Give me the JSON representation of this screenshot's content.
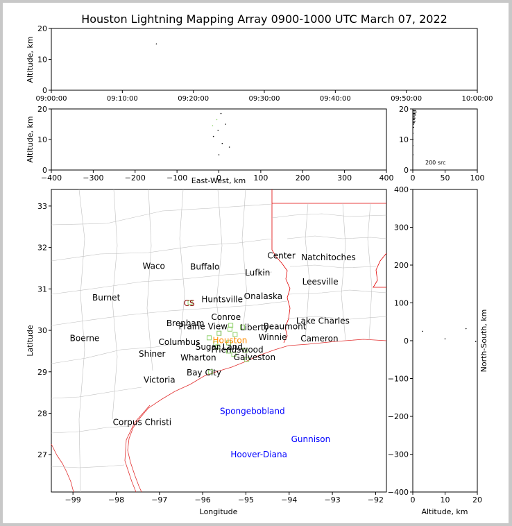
{
  "chart_data": [
    {
      "panel": "time-altitude",
      "type": "scatter",
      "title": "Houston Lightning Mapping Array 0900-1000 UTC March 07, 2022",
      "xlabel": "",
      "ylabel": "Altitude, km",
      "xticks": [
        "09:00:00",
        "09:10:00",
        "09:20:00",
        "09:30:00",
        "09:40:00",
        "09:50:00",
        "10:00:00"
      ],
      "xlim_minutes": [
        0,
        60
      ],
      "ylim": [
        0,
        20
      ],
      "yticks": [
        0,
        10,
        20
      ],
      "points": [
        {
          "t_min": 14.8,
          "alt": 15
        }
      ]
    },
    {
      "panel": "east-west-altitude",
      "type": "scatter",
      "xlabel": "East-West, km",
      "ylabel": "Altitude, km",
      "xlim": [
        -400,
        400
      ],
      "xticks": [
        -400,
        -300,
        -200,
        -100,
        0,
        100,
        200,
        300,
        400
      ],
      "ylim": [
        0,
        20
      ],
      "yticks": [
        0,
        10,
        20
      ],
      "points": [
        {
          "x": 5,
          "alt": 18.5,
          "color": "#000000"
        },
        {
          "x": -5,
          "alt": 16.5,
          "color": "#8fd16a"
        },
        {
          "x": 16,
          "alt": 15,
          "color": "#000000"
        },
        {
          "x": -15,
          "alt": 14.5,
          "color": "#8fd16a"
        },
        {
          "x": -2,
          "alt": 13,
          "color": "#000000"
        },
        {
          "x": -13,
          "alt": 11,
          "color": "#000000"
        },
        {
          "x": 8,
          "alt": 8.7,
          "color": "#000000"
        },
        {
          "x": 25,
          "alt": 7.5,
          "color": "#000000"
        },
        {
          "x": 0,
          "alt": 5,
          "color": "#000000"
        }
      ]
    },
    {
      "panel": "altitude-histogram",
      "type": "bar",
      "xlim": [
        0,
        100
      ],
      "xticks": [
        0,
        50,
        100
      ],
      "ylim": [
        0,
        20
      ],
      "yticks": [
        0,
        10,
        20
      ],
      "annotation": "200 src",
      "bins": [
        {
          "alt": 19.5,
          "count": 5
        },
        {
          "alt": 19,
          "count": 6
        },
        {
          "alt": 18.5,
          "count": 4
        },
        {
          "alt": 18,
          "count": 5
        },
        {
          "alt": 17.5,
          "count": 3
        },
        {
          "alt": 17,
          "count": 4
        },
        {
          "alt": 16.5,
          "count": 3
        },
        {
          "alt": 16,
          "count": 4
        },
        {
          "alt": 15.5,
          "count": 3
        },
        {
          "alt": 15,
          "count": 2
        },
        {
          "alt": 14,
          "count": 2
        },
        {
          "alt": 12,
          "count": 1
        },
        {
          "alt": 10,
          "count": 1
        },
        {
          "alt": 8,
          "count": 1
        },
        {
          "alt": 5,
          "count": 1
        }
      ]
    },
    {
      "panel": "plan-view-map",
      "type": "scatter",
      "xlabel": "Longitude",
      "ylabel": "Latitude",
      "xlim": [
        -99.5,
        -91.75
      ],
      "xticks": [
        -99,
        -98,
        -97,
        -96,
        -95,
        -94,
        -93,
        -92
      ],
      "ylim": [
        26.1,
        33.4
      ],
      "yticks": [
        27,
        28,
        29,
        30,
        31,
        32,
        33
      ],
      "places": [
        {
          "name": "Waco",
          "lon": -97.13,
          "lat": 31.55,
          "color": "#000000"
        },
        {
          "name": "Buffalo",
          "lon": -95.95,
          "lat": 31.53,
          "color": "#000000"
        },
        {
          "name": "Center",
          "lon": -94.18,
          "lat": 31.8,
          "color": "#000000"
        },
        {
          "name": "Natchitoches",
          "lon": -93.09,
          "lat": 31.76,
          "color": "#000000"
        },
        {
          "name": "Lufkin",
          "lon": -94.73,
          "lat": 31.39,
          "color": "#000000"
        },
        {
          "name": "Leesville",
          "lon": -93.28,
          "lat": 31.17,
          "color": "#000000"
        },
        {
          "name": "Burnet",
          "lon": -98.23,
          "lat": 30.79,
          "color": "#000000"
        },
        {
          "name": "CS",
          "lon": -96.31,
          "lat": 30.65,
          "color": "#8b0000"
        },
        {
          "name": "Huntsville",
          "lon": -95.55,
          "lat": 30.75,
          "color": "#000000"
        },
        {
          "name": "Onalaska",
          "lon": -94.6,
          "lat": 30.82,
          "color": "#000000"
        },
        {
          "name": "Conroe",
          "lon": -95.46,
          "lat": 30.32,
          "color": "#000000"
        },
        {
          "name": "Brenham",
          "lon": -96.4,
          "lat": 30.17,
          "color": "#000000"
        },
        {
          "name": "Lake Charles",
          "lon": -93.22,
          "lat": 30.23,
          "color": "#000000"
        },
        {
          "name": "Prairie View",
          "lon": -95.99,
          "lat": 30.09,
          "color": "#000000"
        },
        {
          "name": "Liberty",
          "lon": -94.8,
          "lat": 30.07,
          "color": "#000000"
        },
        {
          "name": "Beaumont",
          "lon": -94.1,
          "lat": 30.09,
          "color": "#000000"
        },
        {
          "name": "Boerne",
          "lon": -98.73,
          "lat": 29.81,
          "color": "#000000"
        },
        {
          "name": "Winnie",
          "lon": -94.38,
          "lat": 29.83,
          "color": "#000000"
        },
        {
          "name": "Cameron",
          "lon": -93.3,
          "lat": 29.8,
          "color": "#000000"
        },
        {
          "name": "Houston",
          "lon": -95.37,
          "lat": 29.76,
          "color": "#ff8c00"
        },
        {
          "name": "Columbus",
          "lon": -96.54,
          "lat": 29.72,
          "color": "#000000"
        },
        {
          "name": "Sugar Land",
          "lon": -95.62,
          "lat": 29.6,
          "color": "#000000"
        },
        {
          "name": "Friendswood",
          "lon": -95.2,
          "lat": 29.53,
          "color": "#000000"
        },
        {
          "name": "Shiner",
          "lon": -97.17,
          "lat": 29.43,
          "color": "#000000"
        },
        {
          "name": "Wharton",
          "lon": -96.1,
          "lat": 29.34,
          "color": "#000000"
        },
        {
          "name": "Galveston",
          "lon": -94.8,
          "lat": 29.35,
          "color": "#000000"
        },
        {
          "name": "Bay City",
          "lon": -95.97,
          "lat": 28.98,
          "color": "#000000"
        },
        {
          "name": "Victoria",
          "lon": -97.0,
          "lat": 28.8,
          "color": "#000000"
        },
        {
          "name": "Spongebobland",
          "lon": -94.85,
          "lat": 28.05,
          "color": "#0000ff"
        },
        {
          "name": "Corpus Christi",
          "lon": -97.4,
          "lat": 27.78,
          "color": "#000000"
        },
        {
          "name": "Gunnison",
          "lon": -93.5,
          "lat": 27.37,
          "color": "#0000ff"
        },
        {
          "name": "Hoover-Diana",
          "lon": -94.7,
          "lat": 27.0,
          "color": "#0000ff"
        }
      ],
      "stations": [
        {
          "lon": -96.29,
          "lat": 30.67
        },
        {
          "lon": -95.35,
          "lat": 30.12
        },
        {
          "lon": -95.08,
          "lat": 30.08
        },
        {
          "lon": -95.37,
          "lat": 30.03
        },
        {
          "lon": -95.62,
          "lat": 29.93
        },
        {
          "lon": -95.25,
          "lat": 29.9
        },
        {
          "lon": -95.85,
          "lat": 29.82
        },
        {
          "lon": -95.4,
          "lat": 29.7
        },
        {
          "lon": -95.7,
          "lat": 29.68
        },
        {
          "lon": -95.65,
          "lat": 29.6
        },
        {
          "lon": -95.4,
          "lat": 29.5
        },
        {
          "lon": -95.02,
          "lat": 29.52
        },
        {
          "lon": -95.28,
          "lat": 29.42
        },
        {
          "lon": -94.98,
          "lat": 29.3
        },
        {
          "lon": -95.82,
          "lat": 29.0
        }
      ]
    },
    {
      "panel": "north-south-altitude",
      "type": "scatter",
      "xlabel": "Altitude, km",
      "ylabel": "North-South, km",
      "xlim": [
        0,
        20
      ],
      "xticks": [
        0,
        10,
        20
      ],
      "ylim": [
        -400,
        400
      ],
      "yticks": [
        -400,
        -300,
        -200,
        -100,
        0,
        100,
        200,
        300,
        400
      ],
      "points": [
        {
          "alt": 3,
          "ns": 25
        },
        {
          "alt": 10,
          "ns": 5
        },
        {
          "alt": 16.5,
          "ns": 32
        },
        {
          "alt": 19.5,
          "ns": -2
        }
      ]
    }
  ]
}
